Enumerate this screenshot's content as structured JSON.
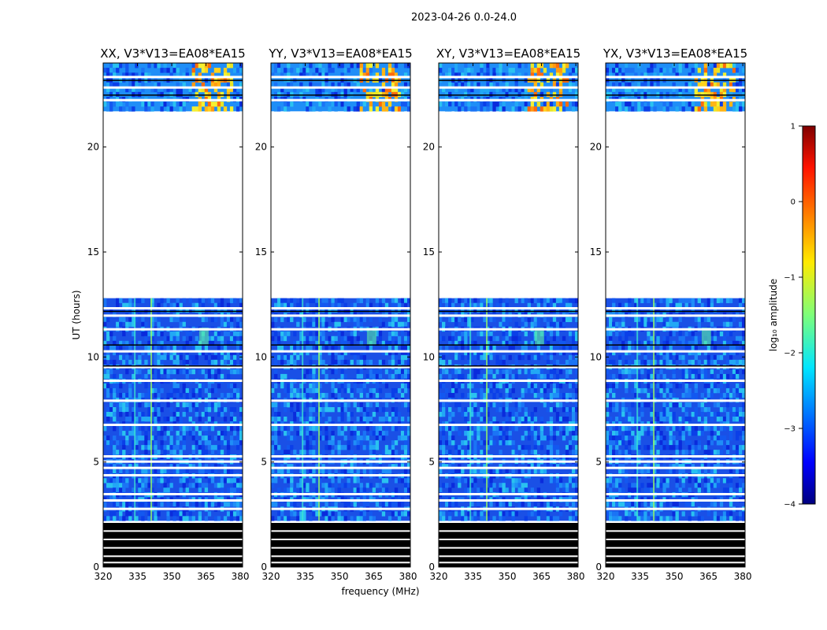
{
  "chart_data": {
    "type": "heatmap",
    "suptitle": "2023-04-26 0.0-24.0",
    "xlabel": "frequency (MHz)",
    "ylabel": "UT (hours)",
    "xlim": [
      320,
      381
    ],
    "ylim": [
      0,
      24
    ],
    "xticks": [
      320,
      335,
      350,
      365,
      380
    ],
    "yticks": [
      0,
      5,
      10,
      15,
      20
    ],
    "panels": [
      {
        "title": "XX, V3*V13=EA08*EA15",
        "pol": "XX"
      },
      {
        "title": "YY, V3*V13=EA08*EA15",
        "pol": "YY"
      },
      {
        "title": "XY, V3*V13=EA08*EA15",
        "pol": "XY"
      },
      {
        "title": "YX, V3*V13=EA08*EA15",
        "pol": "YX"
      }
    ],
    "data_segments": [
      {
        "from": 2.2,
        "to": 12.8,
        "level": "low"
      },
      {
        "from": 21.7,
        "to": 24.0,
        "level": "high"
      }
    ],
    "flagged_segments": [
      {
        "from": 0.0,
        "to": 2.1
      }
    ],
    "colorbar": {
      "label": "log₁₀ amplitude",
      "range": [
        -4,
        1
      ],
      "ticks": [
        1,
        0,
        -1,
        -2,
        -3,
        -4
      ],
      "tick_labels": [
        "1",
        "0",
        "−1",
        "−2",
        "−3",
        "−4"
      ],
      "colormap": "jet"
    }
  }
}
